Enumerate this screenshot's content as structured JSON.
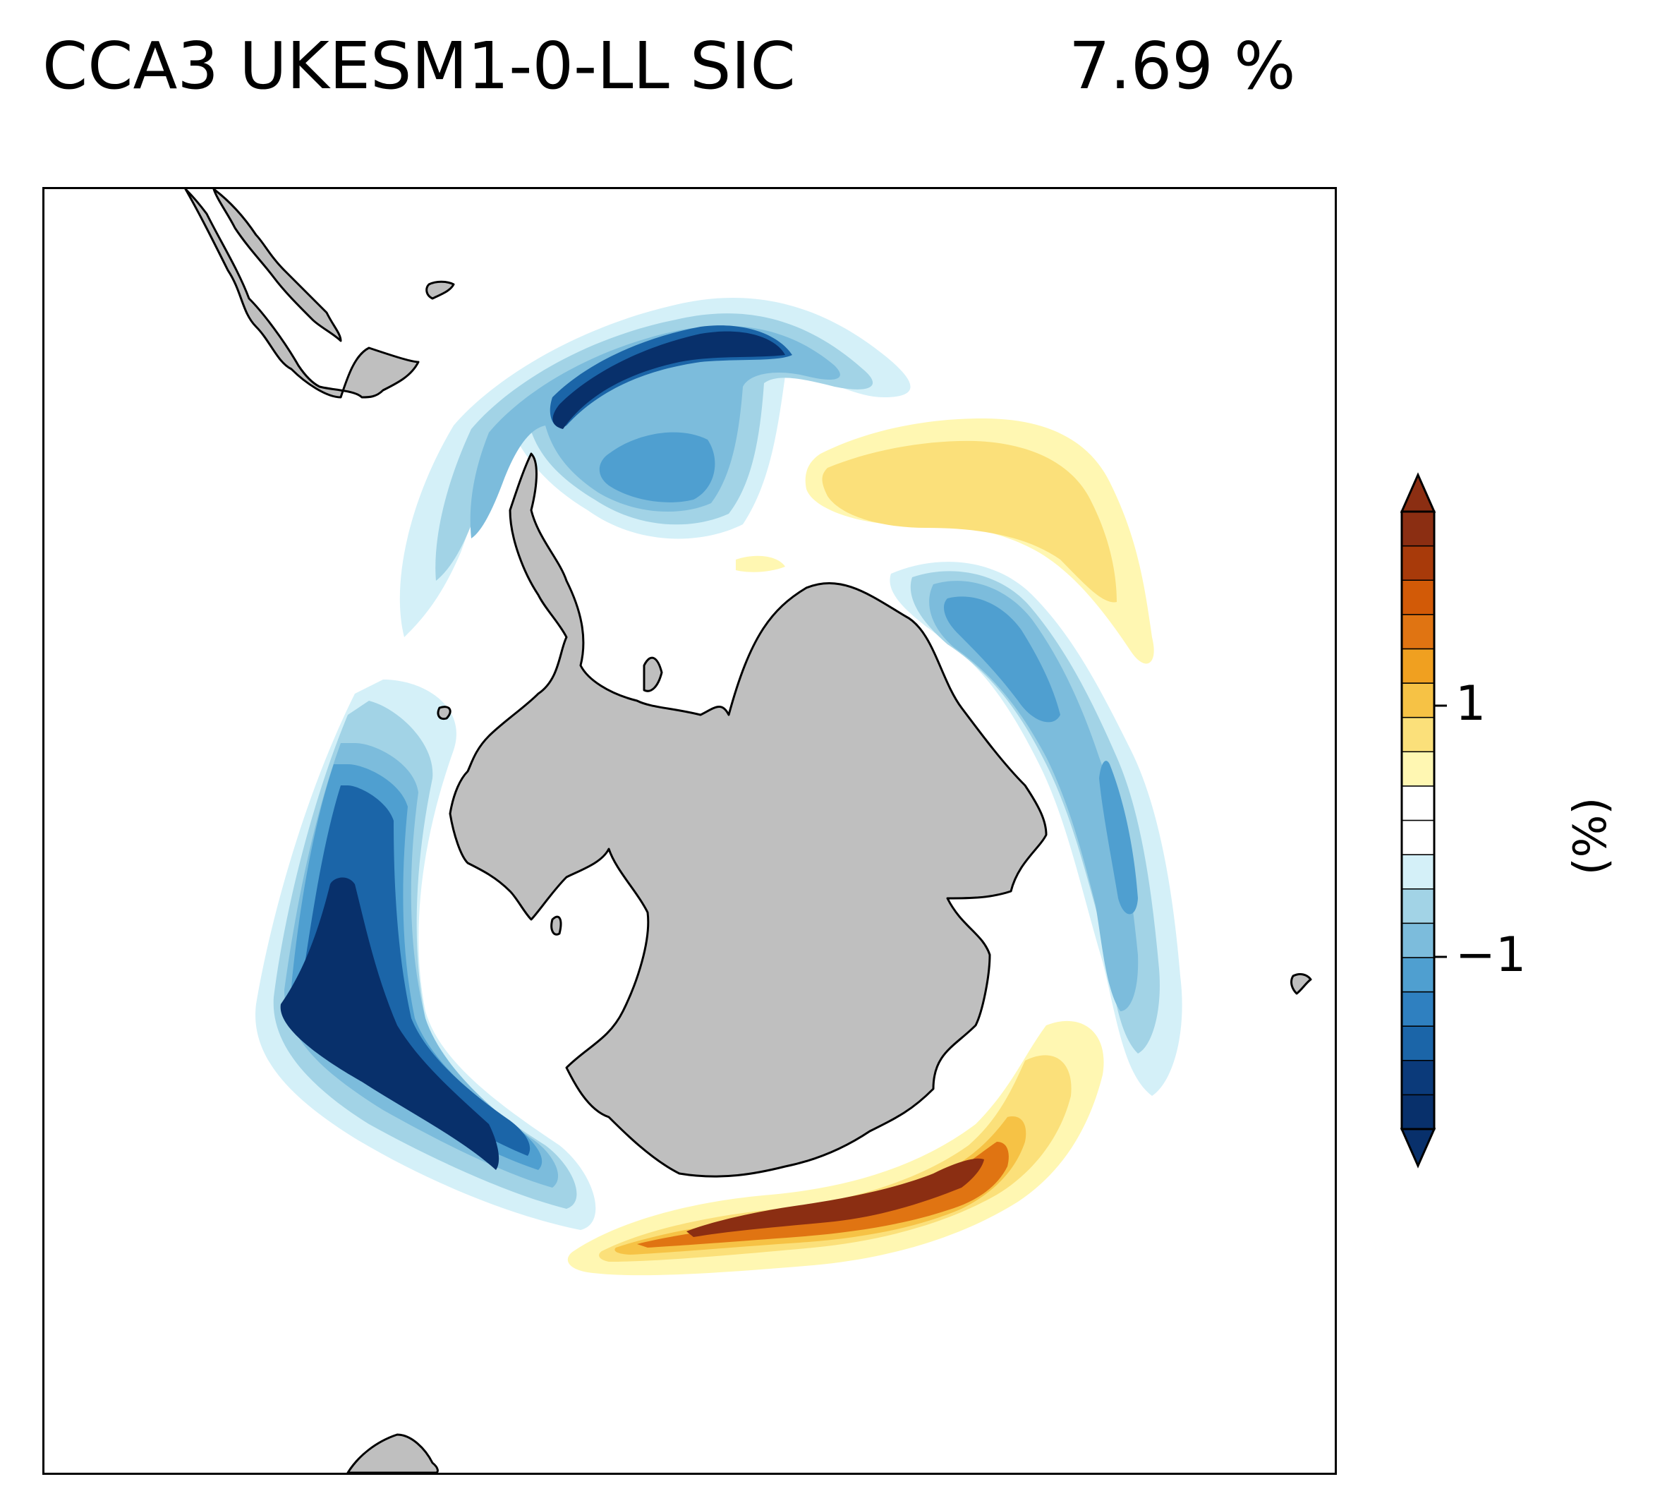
{
  "title": {
    "left": "CCA3 UKESM1-0-LL SIC",
    "right": "7.69 %"
  },
  "colorbar": {
    "label": "(%)",
    "ticks": [
      {
        "value": 1,
        "label": "1"
      },
      {
        "value": -1,
        "label": "−1"
      }
    ],
    "colors": [
      "#08306b",
      "#08306b",
      "#0b3a7a",
      "#1b65a8",
      "#2f80c0",
      "#4f9fd0",
      "#7cbcdc",
      "#a2d3e6",
      "#d4f0f8",
      "#ffffff",
      "#ffffff",
      "#fff7b2",
      "#fbe07a",
      "#f6c245",
      "#f0a020",
      "#e07412",
      "#d25a07",
      "#a83a0a",
      "#8b2e12",
      "#8b2e12"
    ],
    "extend": "both"
  },
  "map": {
    "projection": "south polar stereographic",
    "land_color": "#bfbfbf",
    "coast_color": "#000000"
  }
}
